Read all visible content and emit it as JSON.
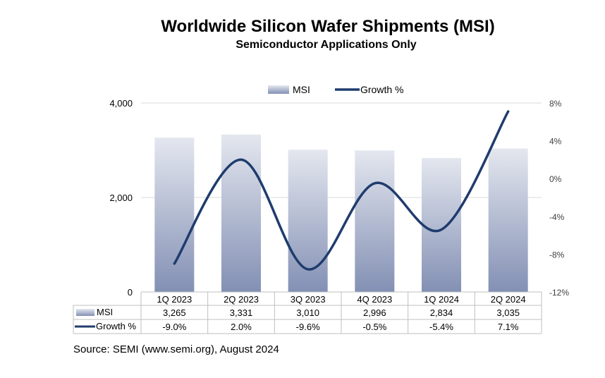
{
  "chart_data": {
    "type": "bar",
    "title": "Worldwide Silicon Wafer Shipments (MSI)",
    "subtitle": "Semiconductor Applications Only",
    "categories": [
      "1Q 2023",
      "2Q 2023",
      "3Q 2023",
      "4Q 2023",
      "1Q 2024",
      "2Q 2024"
    ],
    "series": [
      {
        "name": "MSI",
        "type": "bar",
        "axis": "left",
        "values": [
          3265,
          3331,
          3010,
          2996,
          2834,
          3035
        ],
        "labels": [
          "3,265",
          "3,331",
          "3,010",
          "2,996",
          "2,834",
          "3,035"
        ],
        "color_top": "#e4e7ef",
        "color_bottom": "#8390b4"
      },
      {
        "name": "Growth %",
        "type": "line",
        "axis": "right",
        "values": [
          -9.0,
          2.0,
          -9.6,
          -0.5,
          -5.4,
          7.1
        ],
        "labels": [
          "-9.0%",
          "2.0%",
          "-9.6%",
          "-0.5%",
          "-5.4%",
          "7.1%"
        ],
        "color": "#1f3c6e"
      }
    ],
    "y_left": {
      "ylim": [
        0,
        4000
      ],
      "ticks": [
        0,
        2000,
        4000
      ],
      "tick_labels": [
        "0",
        "2,000",
        "4,000"
      ]
    },
    "y_right": {
      "ylim": [
        -12,
        8
      ],
      "ticks": [
        -12,
        -8,
        -4,
        0,
        4,
        8
      ],
      "tick_labels": [
        "-12%",
        "-8%",
        "-4%",
        "0%",
        "4%",
        "8%"
      ]
    },
    "legend_position": "top",
    "grid": true,
    "data_table": true
  },
  "source": "Source: SEMI (www.semi.org), August 2024"
}
